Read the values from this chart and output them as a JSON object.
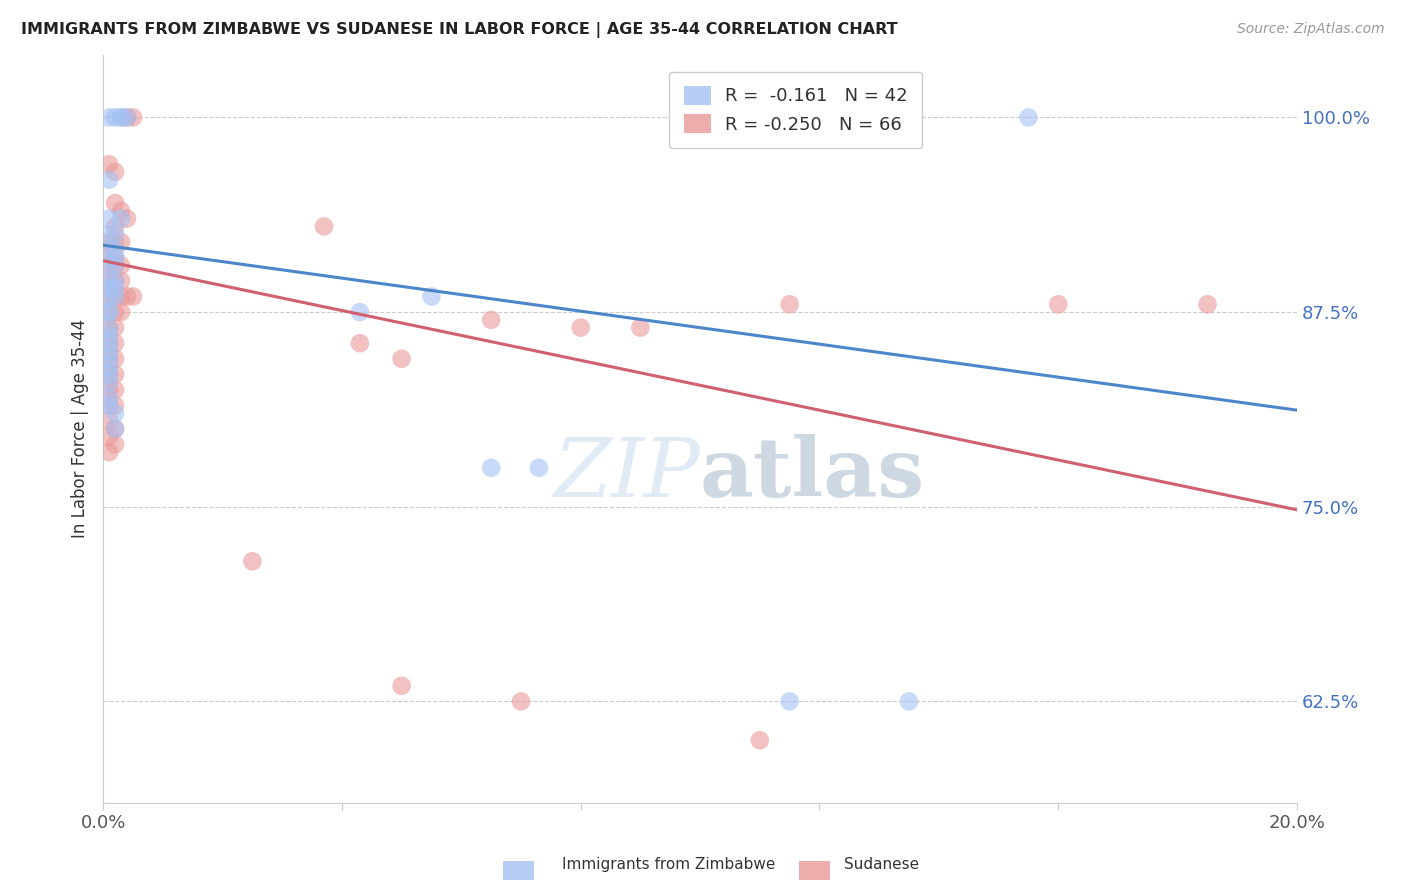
{
  "title": "IMMIGRANTS FROM ZIMBABWE VS SUDANESE IN LABOR FORCE | AGE 35-44 CORRELATION CHART",
  "source": "Source: ZipAtlas.com",
  "ylabel": "In Labor Force | Age 35-44",
  "xlim": [
    0.0,
    0.2
  ],
  "ylim": [
    0.56,
    1.04
  ],
  "yticks": [
    0.625,
    0.75,
    0.875,
    1.0
  ],
  "ytick_labels": [
    "62.5%",
    "75.0%",
    "87.5%",
    "100.0%"
  ],
  "xticks": [
    0.0,
    0.04,
    0.08,
    0.12,
    0.16,
    0.2
  ],
  "xtick_labels": [
    "0.0%",
    "",
    "",
    "",
    "",
    "20.0%"
  ],
  "watermark": "ZIPatlas",
  "blue_color": "#a4c2f4",
  "pink_color": "#ea9999",
  "blue_line_color": "#4a86c8",
  "pink_line_color": "#d06070",
  "blue_scatter": [
    [
      0.001,
      1.0
    ],
    [
      0.002,
      1.0
    ],
    [
      0.003,
      1.0
    ],
    [
      0.003,
      1.0
    ],
    [
      0.004,
      1.0
    ],
    [
      0.001,
      0.96
    ],
    [
      0.001,
      0.935
    ],
    [
      0.003,
      0.935
    ],
    [
      0.001,
      0.925
    ],
    [
      0.002,
      0.925
    ],
    [
      0.001,
      0.915
    ],
    [
      0.002,
      0.915
    ],
    [
      0.002,
      0.91
    ],
    [
      0.001,
      0.905
    ],
    [
      0.002,
      0.905
    ],
    [
      0.001,
      0.895
    ],
    [
      0.002,
      0.895
    ],
    [
      0.001,
      0.89
    ],
    [
      0.002,
      0.89
    ],
    [
      0.001,
      0.885
    ],
    [
      0.002,
      0.885
    ],
    [
      0.001,
      0.875
    ],
    [
      0.001,
      0.875
    ],
    [
      0.001,
      0.865
    ],
    [
      0.001,
      0.86
    ],
    [
      0.001,
      0.855
    ],
    [
      0.001,
      0.85
    ],
    [
      0.001,
      0.845
    ],
    [
      0.001,
      0.84
    ],
    [
      0.001,
      0.835
    ],
    [
      0.001,
      0.83
    ],
    [
      0.001,
      0.82
    ],
    [
      0.001,
      0.815
    ],
    [
      0.002,
      0.81
    ],
    [
      0.002,
      0.8
    ],
    [
      0.043,
      0.875
    ],
    [
      0.055,
      0.885
    ],
    [
      0.065,
      0.775
    ],
    [
      0.073,
      0.775
    ],
    [
      0.155,
      1.0
    ],
    [
      0.115,
      0.625
    ],
    [
      0.135,
      0.625
    ]
  ],
  "pink_scatter": [
    [
      0.004,
      1.0
    ],
    [
      0.005,
      1.0
    ],
    [
      0.001,
      0.97
    ],
    [
      0.002,
      0.965
    ],
    [
      0.002,
      0.945
    ],
    [
      0.003,
      0.94
    ],
    [
      0.004,
      0.935
    ],
    [
      0.002,
      0.93
    ],
    [
      0.037,
      0.93
    ],
    [
      0.001,
      0.92
    ],
    [
      0.002,
      0.92
    ],
    [
      0.003,
      0.92
    ],
    [
      0.001,
      0.915
    ],
    [
      0.002,
      0.91
    ],
    [
      0.001,
      0.905
    ],
    [
      0.002,
      0.905
    ],
    [
      0.003,
      0.905
    ],
    [
      0.001,
      0.895
    ],
    [
      0.002,
      0.895
    ],
    [
      0.003,
      0.895
    ],
    [
      0.001,
      0.885
    ],
    [
      0.002,
      0.885
    ],
    [
      0.003,
      0.885
    ],
    [
      0.004,
      0.885
    ],
    [
      0.005,
      0.885
    ],
    [
      0.001,
      0.875
    ],
    [
      0.002,
      0.875
    ],
    [
      0.003,
      0.875
    ],
    [
      0.001,
      0.865
    ],
    [
      0.002,
      0.865
    ],
    [
      0.001,
      0.855
    ],
    [
      0.002,
      0.855
    ],
    [
      0.043,
      0.855
    ],
    [
      0.001,
      0.845
    ],
    [
      0.002,
      0.845
    ],
    [
      0.05,
      0.845
    ],
    [
      0.001,
      0.835
    ],
    [
      0.002,
      0.835
    ],
    [
      0.001,
      0.825
    ],
    [
      0.002,
      0.825
    ],
    [
      0.001,
      0.815
    ],
    [
      0.002,
      0.815
    ],
    [
      0.001,
      0.805
    ],
    [
      0.002,
      0.8
    ],
    [
      0.001,
      0.795
    ],
    [
      0.002,
      0.79
    ],
    [
      0.001,
      0.785
    ],
    [
      0.065,
      0.87
    ],
    [
      0.08,
      0.865
    ],
    [
      0.09,
      0.865
    ],
    [
      0.115,
      0.88
    ],
    [
      0.025,
      0.715
    ],
    [
      0.16,
      0.88
    ],
    [
      0.185,
      0.88
    ],
    [
      0.07,
      0.625
    ],
    [
      0.11,
      0.6
    ],
    [
      0.05,
      0.635
    ]
  ],
  "blue_trend_x": [
    0.0,
    0.2
  ],
  "blue_trend_y": [
    0.918,
    0.812
  ],
  "pink_trend_x": [
    0.0,
    0.2
  ],
  "pink_trend_y": [
    0.908,
    0.748
  ]
}
